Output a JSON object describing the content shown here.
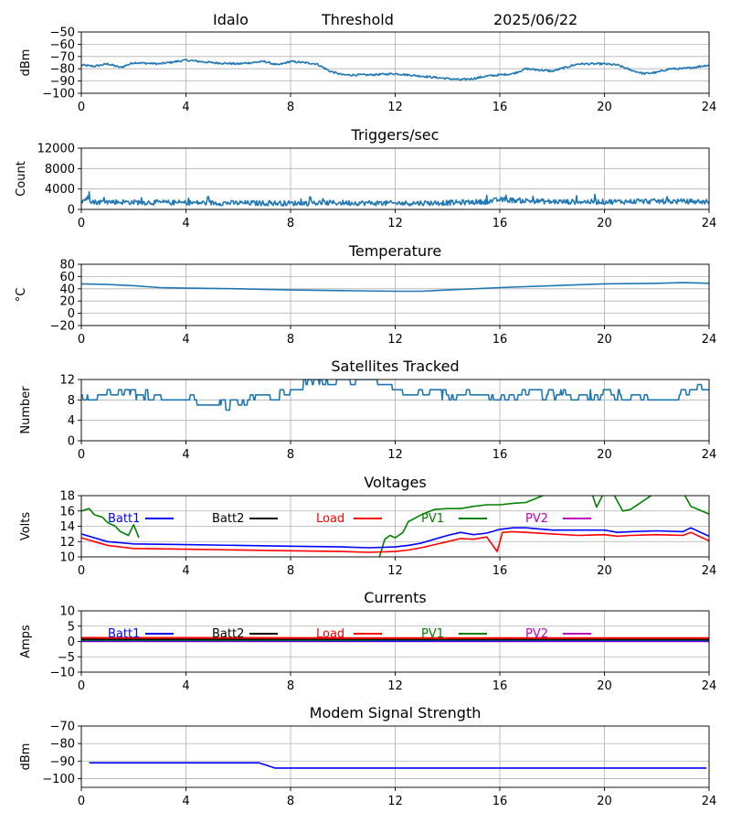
{
  "header": {
    "station": "Idalo",
    "kind": "Threshold",
    "date": "2025/06/22"
  },
  "colors": {
    "mpl_blue": "#1f77b4",
    "batt1": "#0000ff",
    "batt2": "#000000",
    "load": "#ff0000",
    "pv1": "#008000",
    "pv2": "#c000c0",
    "grid": "#b0b0b0"
  },
  "x_axis": {
    "ticks": [
      0,
      4,
      8,
      12,
      16,
      20,
      24
    ],
    "range": [
      0,
      24
    ]
  },
  "chart_data": [
    {
      "id": "threshold",
      "type": "line",
      "title": "",
      "ylabel": "dBm",
      "ylim": [
        -100,
        -50
      ],
      "yticks": [
        -100,
        -90,
        -80,
        -70,
        -60,
        -50
      ],
      "series": [
        {
          "color": "#1f77b4",
          "noise": 0.8,
          "x": [
            0,
            0.5,
            1,
            1.5,
            2,
            3,
            4,
            5,
            6,
            7,
            7.5,
            8,
            8.5,
            9,
            9.5,
            10,
            11,
            12,
            13,
            14,
            14.5,
            15,
            15.5,
            16,
            16.5,
            17,
            18,
            19,
            20,
            20.5,
            21,
            21.5,
            22,
            22.5,
            23,
            24
          ],
          "y": [
            -77,
            -78,
            -76,
            -79,
            -75,
            -76,
            -73,
            -75,
            -76,
            -74,
            -77,
            -74,
            -75,
            -76,
            -82,
            -85,
            -85,
            -84,
            -86,
            -88,
            -89,
            -88,
            -86,
            -85,
            -84,
            -80,
            -82,
            -76,
            -76,
            -77,
            -81,
            -84,
            -83,
            -80,
            -80,
            -77
          ]
        }
      ]
    },
    {
      "id": "triggers",
      "type": "line",
      "title": "Triggers/sec",
      "ylabel": "Count",
      "ylim": [
        0,
        12000
      ],
      "yticks": [
        0,
        4000,
        8000,
        12000
      ],
      "series": [
        {
          "color": "#1f77b4",
          "noise": 500,
          "x": [
            0,
            0.2,
            0.5,
            1,
            2,
            4,
            8,
            10,
            12,
            14,
            15.5,
            16,
            17,
            18,
            20,
            22,
            24
          ],
          "y": [
            1500,
            2200,
            1400,
            1500,
            1400,
            1300,
            1200,
            1300,
            1200,
            1300,
            1500,
            1900,
            1700,
            1500,
            1500,
            1600,
            1500
          ]
        }
      ]
    },
    {
      "id": "temperature",
      "type": "line",
      "title": "Temperature",
      "ylabel": "°C",
      "ylim": [
        -20,
        80
      ],
      "yticks": [
        -20,
        0,
        20,
        40,
        60,
        80
      ],
      "series": [
        {
          "color": "#1f77b4",
          "noise": 0,
          "x": [
            0,
            1,
            2,
            3,
            4,
            6,
            8,
            10,
            12,
            13,
            14,
            16,
            18,
            20,
            22,
            23,
            24
          ],
          "y": [
            48,
            47,
            45,
            42,
            41,
            40,
            38,
            37,
            36,
            36,
            38,
            42,
            45,
            48,
            49,
            50,
            49
          ]
        }
      ]
    },
    {
      "id": "satellites",
      "type": "line",
      "title": "Satellites Tracked",
      "ylabel": "Number",
      "ylim": [
        0,
        12
      ],
      "yticks": [
        0,
        4,
        8,
        12
      ],
      "series": [
        {
          "color": "#1f77b4",
          "noise": 1,
          "step": true,
          "x": [
            0,
            1,
            2,
            3,
            4,
            5,
            6,
            7,
            8,
            9,
            10,
            11,
            12,
            13,
            14,
            15,
            16,
            17,
            18,
            19,
            20,
            21,
            22,
            23,
            24
          ],
          "y": [
            8,
            9,
            9,
            8,
            8,
            7,
            7,
            8,
            10,
            11,
            11,
            11,
            10,
            9,
            9,
            9,
            8,
            9,
            9,
            8,
            9,
            8,
            8,
            9,
            10
          ]
        }
      ]
    },
    {
      "id": "voltages",
      "type": "line",
      "title": "Voltages",
      "ylabel": "Volts",
      "ylim": [
        10,
        18
      ],
      "yticks": [
        10,
        12,
        14,
        16,
        18
      ],
      "legend": [
        {
          "label": "Batt1",
          "color": "#0000ff"
        },
        {
          "label": "Batt2",
          "color": "#000000"
        },
        {
          "label": "Load",
          "color": "#ff0000"
        },
        {
          "label": "PV1",
          "color": "#008000"
        },
        {
          "label": "PV2",
          "color": "#c000c0"
        }
      ],
      "series": [
        {
          "name": "PV1",
          "color": "#008000",
          "noise": 0,
          "x": [
            0,
            0.3,
            0.5,
            0.8,
            1,
            1.3,
            1.5,
            1.8,
            2,
            2.2,
            null,
            11.4,
            11.6,
            11.8,
            12.0,
            12.3,
            12.5,
            13,
            13.5,
            14,
            14.5,
            15,
            15.5,
            16,
            16.5,
            17,
            18,
            19.5,
            19.7,
            20,
            20.3,
            20.7,
            21,
            22,
            23,
            23.3,
            24
          ],
          "y": [
            16,
            16.3,
            15.5,
            15.2,
            14.5,
            14.0,
            13.3,
            12.8,
            14.2,
            12.5,
            null,
            10,
            12.3,
            12.8,
            12.5,
            13.2,
            14.6,
            15.5,
            16.2,
            16.3,
            16.3,
            16.6,
            16.8,
            16.8,
            17.0,
            17.1,
            18.5,
            18.5,
            16.5,
            18.5,
            18.5,
            16.0,
            16.2,
            18.5,
            18.5,
            16.6,
            15.6
          ]
        },
        {
          "name": "Batt1",
          "color": "#0000ff",
          "noise": 0,
          "x": [
            0,
            0.5,
            1,
            2,
            4,
            8,
            10,
            11,
            12,
            12.5,
            13,
            13.5,
            14,
            14.5,
            15,
            15.5,
            16,
            16.5,
            17,
            18,
            19,
            20,
            20.5,
            21,
            22,
            23,
            23.3,
            24
          ],
          "y": [
            13.0,
            12.5,
            12.0,
            11.7,
            11.6,
            11.4,
            11.3,
            11.2,
            11.3,
            11.5,
            11.8,
            12.3,
            12.8,
            13.2,
            12.9,
            13.1,
            13.6,
            13.8,
            13.8,
            13.5,
            13.5,
            13.5,
            13.2,
            13.3,
            13.4,
            13.3,
            13.8,
            12.7
          ]
        },
        {
          "name": "Load",
          "color": "#ff0000",
          "noise": 0,
          "x": [
            0,
            0.5,
            1,
            2,
            4,
            8,
            10,
            11,
            12,
            12.5,
            13,
            13.5,
            14,
            14.5,
            15,
            15.5,
            15.9,
            16.1,
            16.5,
            17,
            18,
            19,
            20,
            20.5,
            21,
            22,
            23,
            23.3,
            24
          ],
          "y": [
            12.5,
            12.0,
            11.5,
            11.1,
            11.0,
            10.8,
            10.7,
            10.6,
            10.7,
            10.9,
            11.2,
            11.6,
            12.0,
            12.4,
            12.3,
            12.6,
            10.7,
            13.2,
            13.3,
            13.2,
            13.0,
            12.8,
            12.9,
            12.7,
            12.8,
            12.9,
            12.8,
            13.2,
            12.1
          ]
        }
      ]
    },
    {
      "id": "currents",
      "type": "line",
      "title": "Currents",
      "ylabel": "Amps",
      "ylim": [
        -10,
        10
      ],
      "yticks": [
        -10,
        -5,
        0,
        5,
        10
      ],
      "legend": [
        {
          "label": "Batt1",
          "color": "#0000ff"
        },
        {
          "label": "Batt2",
          "color": "#000000"
        },
        {
          "label": "Load",
          "color": "#ff0000"
        },
        {
          "label": "PV1",
          "color": "#008000"
        },
        {
          "label": "PV2",
          "color": "#c000c0"
        }
      ],
      "series": [
        {
          "name": "PV2",
          "color": "#c000c0",
          "noise": 0,
          "x": [
            0,
            24
          ],
          "y": [
            0.1,
            0.1
          ]
        },
        {
          "name": "Batt1",
          "color": "#0000ff",
          "noise": 0,
          "x": [
            0,
            6,
            12,
            18,
            24
          ],
          "y": [
            0.3,
            0.3,
            0.2,
            0.3,
            0.3
          ]
        },
        {
          "name": "PV1",
          "color": "#008000",
          "noise": 0,
          "x": [
            0,
            11,
            11.5,
            24
          ],
          "y": [
            0.5,
            0.5,
            0.6,
            0.6
          ]
        },
        {
          "name": "Batt2",
          "color": "#000000",
          "noise": 0,
          "x": [
            0,
            24
          ],
          "y": [
            0.8,
            0.8
          ]
        },
        {
          "name": "Load",
          "color": "#ff0000",
          "noise": 0,
          "x": [
            0,
            6,
            12,
            18,
            24
          ],
          "y": [
            1.2,
            1.2,
            1.1,
            1.1,
            1.1
          ]
        }
      ]
    },
    {
      "id": "modem",
      "type": "line",
      "title": "Modem Signal Strength",
      "ylabel": "dBm",
      "ylim": [
        -105,
        -70
      ],
      "yticks": [
        -100,
        -90,
        -80,
        -70
      ],
      "series": [
        {
          "color": "#0000ff",
          "noise": 0,
          "x": [
            0.3,
            6.8,
            7.4,
            23.9
          ],
          "y": [
            -91,
            -91,
            -94,
            -94
          ]
        }
      ]
    }
  ]
}
